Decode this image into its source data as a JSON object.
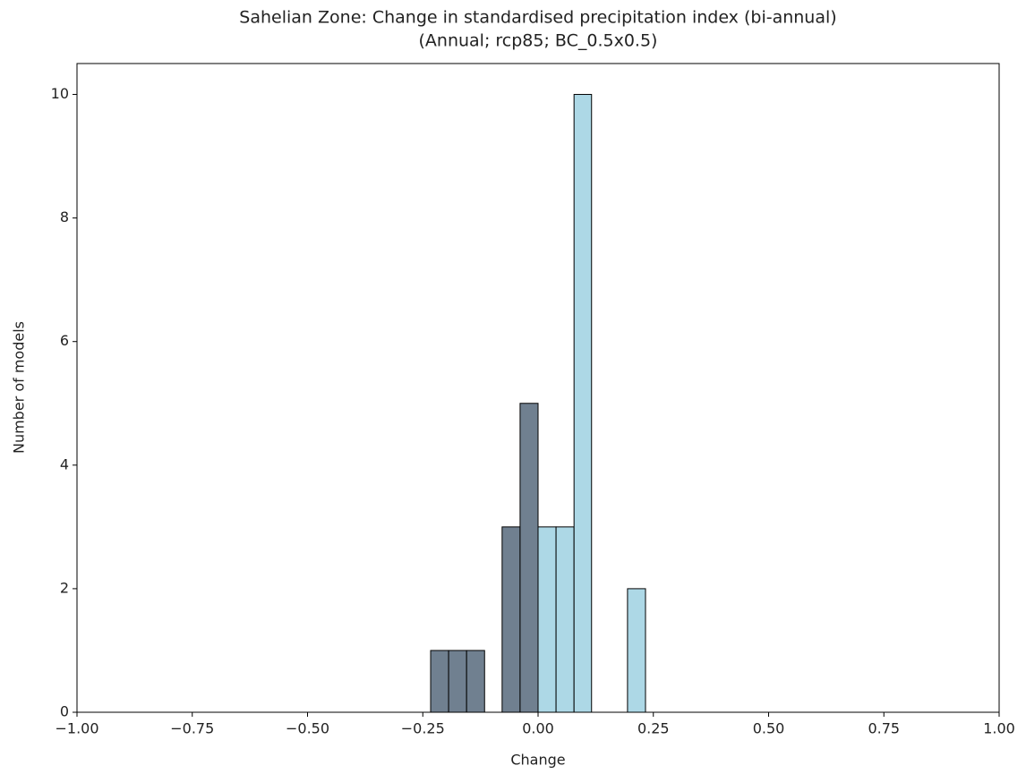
{
  "chart_data": {
    "type": "histogram",
    "title": "Sahelian Zone: Change in standardised precipitation index (bi-annual)",
    "subtitle": "(Annual; rcp85; BC_0.5x0.5)",
    "x_label": "Change",
    "y_label": "Number of models",
    "bins": [
      -0.233,
      -0.194,
      -0.155,
      -0.116,
      -0.078,
      -0.039,
      0.0,
      0.039,
      0.078,
      0.116,
      0.155,
      0.194,
      0.233
    ],
    "values": [
      1,
      1,
      1,
      0,
      3,
      5,
      3,
      3,
      10,
      0,
      0,
      2
    ],
    "colors": [
      "#708090",
      "#708090",
      "#708090",
      "#708090",
      "#708090",
      "#708090",
      "#add8e6",
      "#add8e6",
      "#add8e6",
      "#add8e6",
      "#add8e6",
      "#add8e6"
    ],
    "xlim": [
      -1,
      1
    ],
    "ylim": [
      0,
      10.5
    ],
    "xticks": [
      {
        "value": -1,
        "label": "−1.00"
      },
      {
        "value": -0.75,
        "label": "−0.75"
      },
      {
        "value": -0.5,
        "label": "−0.50"
      },
      {
        "value": -0.25,
        "label": "−0.25"
      },
      {
        "value": 0,
        "label": "0.00"
      },
      {
        "value": 0.25,
        "label": "0.25"
      },
      {
        "value": 0.5,
        "label": "0.50"
      },
      {
        "value": 0.75,
        "label": "0.75"
      },
      {
        "value": 1,
        "label": "1.00"
      }
    ],
    "yticks": [
      0,
      2,
      4,
      6,
      8,
      10
    ],
    "grid": false
  }
}
